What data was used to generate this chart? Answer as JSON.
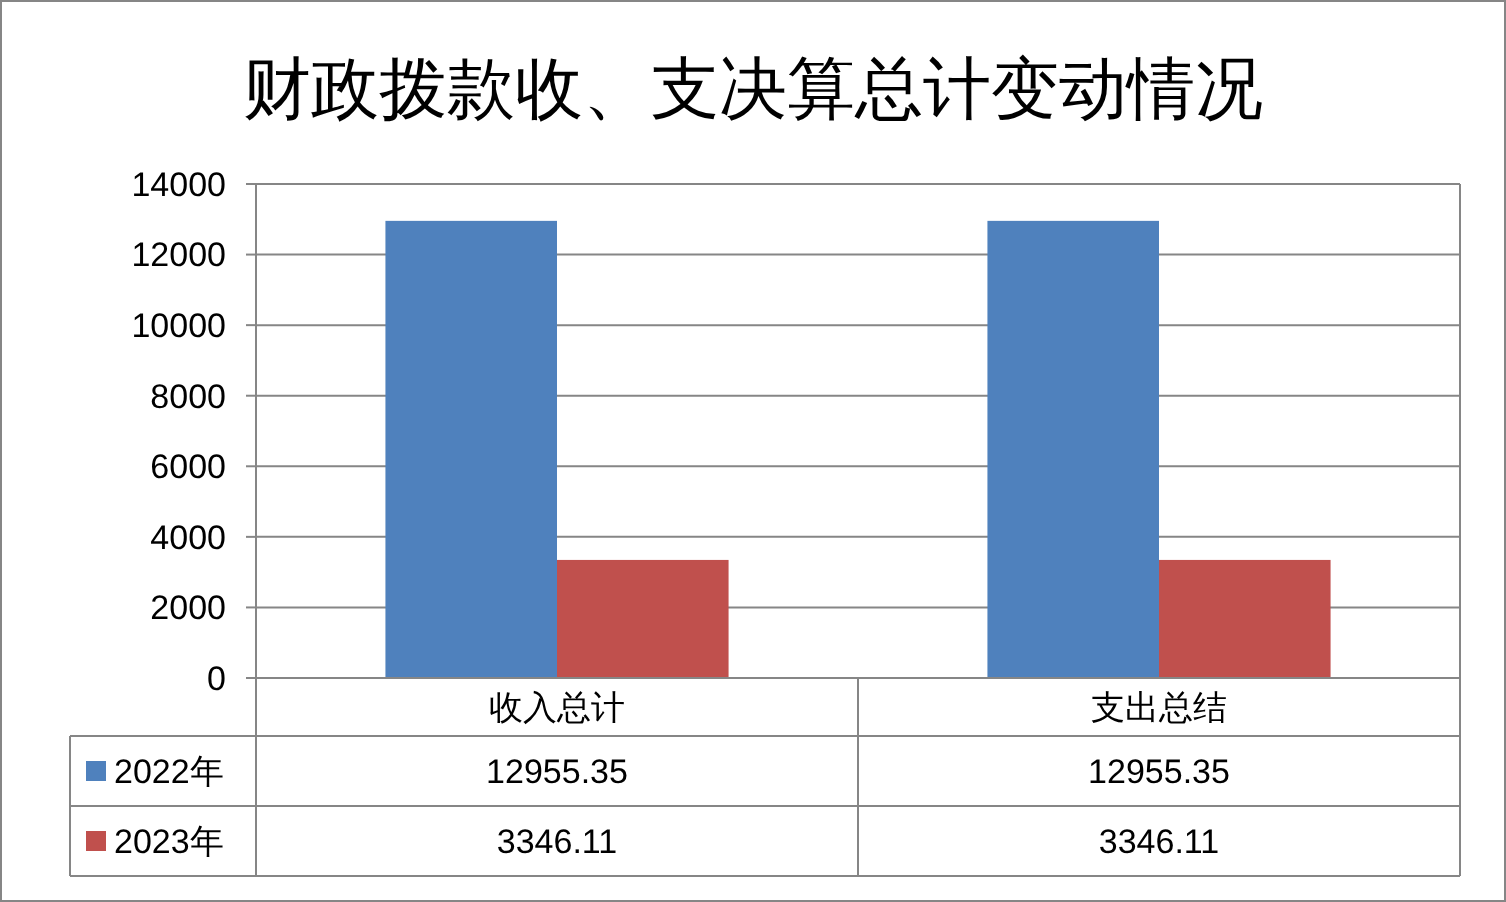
{
  "chart_data": {
    "type": "bar",
    "title": "财政拨款收、支决算总计变动情况",
    "categories": [
      "收入总计",
      "支出总结"
    ],
    "series": [
      {
        "name": "2022年",
        "color": "#4f81bd",
        "values": [
          12955.35,
          12955.35
        ]
      },
      {
        "name": "2023年",
        "color": "#c0504d",
        "values": [
          3346.11,
          3346.11
        ]
      }
    ],
    "ylim": [
      0,
      14000
    ],
    "yticks": [
      0,
      2000,
      4000,
      6000,
      8000,
      10000,
      12000,
      14000
    ],
    "grid": "y",
    "legend": "bottom left",
    "data_labels": true
  }
}
